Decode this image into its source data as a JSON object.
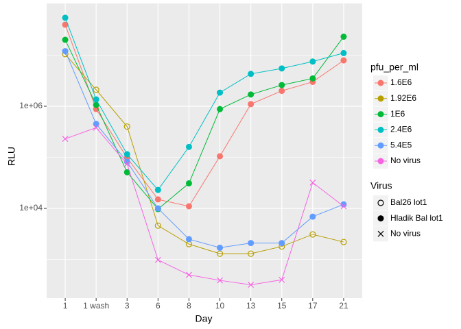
{
  "chart_data": {
    "type": "line",
    "x_label": "Day",
    "y_label": "RLU",
    "categories": [
      "1",
      "1 wash",
      "3",
      "6",
      "8",
      "10",
      "13",
      "15",
      "17",
      "21"
    ],
    "log_scale_y": true,
    "ylim": [
      175,
      103000000
    ],
    "yticks": [
      {
        "value": 1000000,
        "label": "1e+06"
      },
      {
        "value": 10000,
        "label": "1e+04"
      }
    ],
    "y_minor_gridlines": [
      10000000,
      100000,
      1000
    ],
    "grid": true,
    "legend_title": "pfu_per_ml",
    "legend_position": "right",
    "series": [
      {
        "name": "1.6E6",
        "color": "#F8766D",
        "shape": "filled-circle",
        "values": [
          39500000,
          880000,
          98000,
          15000,
          11000,
          105000,
          1100000,
          2000000,
          3000000,
          7900000
        ]
      },
      {
        "name": "1.92E6",
        "color": "#B79F00",
        "shape": "open-circle",
        "values": [
          10500000,
          2100000,
          400000,
          4600,
          2000,
          1300,
          1300,
          1800,
          3100,
          2200
        ]
      },
      {
        "name": "1E6",
        "color": "#00BA38",
        "shape": "filled-circle",
        "values": [
          20000000,
          1060000,
          51000,
          9700,
          31000,
          880000,
          1700000,
          2600000,
          3500000,
          23000000
        ]
      },
      {
        "name": "2.4E6",
        "color": "#00BFC4",
        "shape": "filled-circle",
        "values": [
          54000000,
          1360000,
          115000,
          23000,
          160000,
          1850000,
          4300000,
          5500000,
          7500000,
          11000000
        ]
      },
      {
        "name": "5.4E5",
        "color": "#619CFF",
        "shape": "filled-circle",
        "values": [
          12000000,
          450000,
          82000,
          10000,
          2500,
          1700,
          2100,
          2100,
          6900,
          12000
        ]
      },
      {
        "name": "No virus",
        "color": "#F564E3",
        "shape": "x",
        "values": [
          230000,
          380000,
          74000,
          980,
          500,
          390,
          320,
          400,
          32000,
          11000
        ]
      }
    ],
    "shape_legend": {
      "title": "Virus",
      "entries": [
        {
          "label": "Bal26 lot1",
          "shape": "open-circle"
        },
        {
          "label": "Hladik Bal lot1",
          "shape": "filled-circle"
        },
        {
          "label": "No virus",
          "shape": "x"
        }
      ]
    }
  }
}
